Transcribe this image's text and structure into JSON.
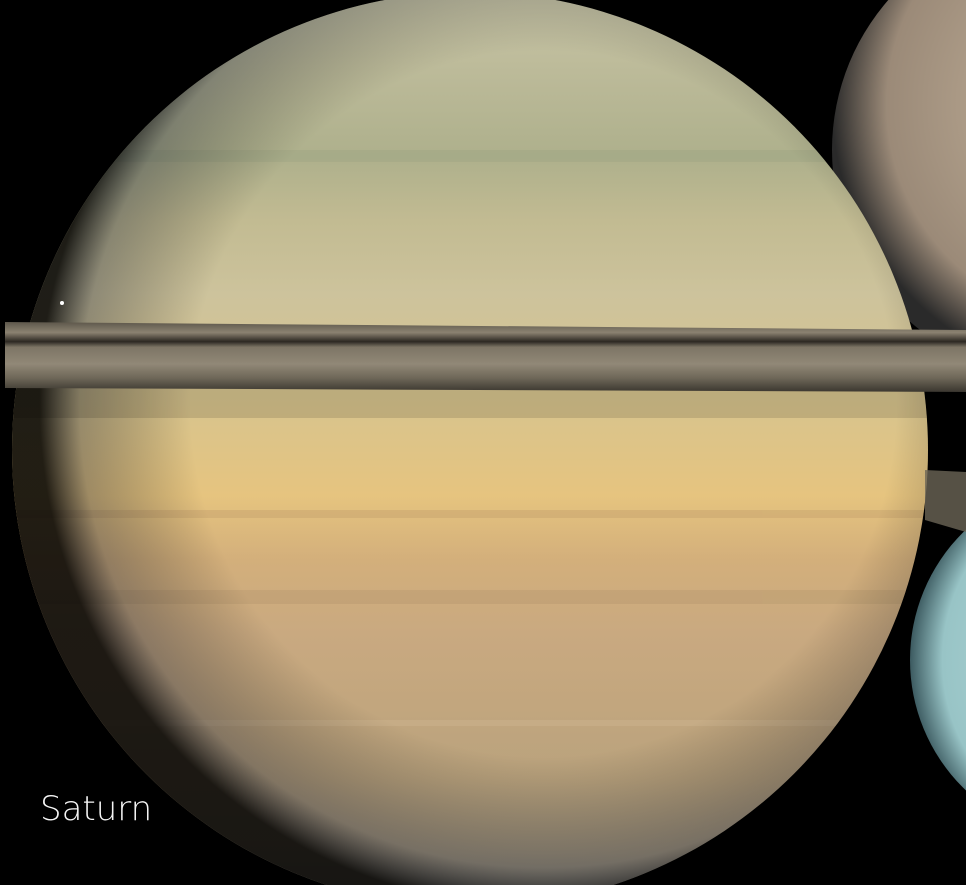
{
  "label": "Saturn"
}
